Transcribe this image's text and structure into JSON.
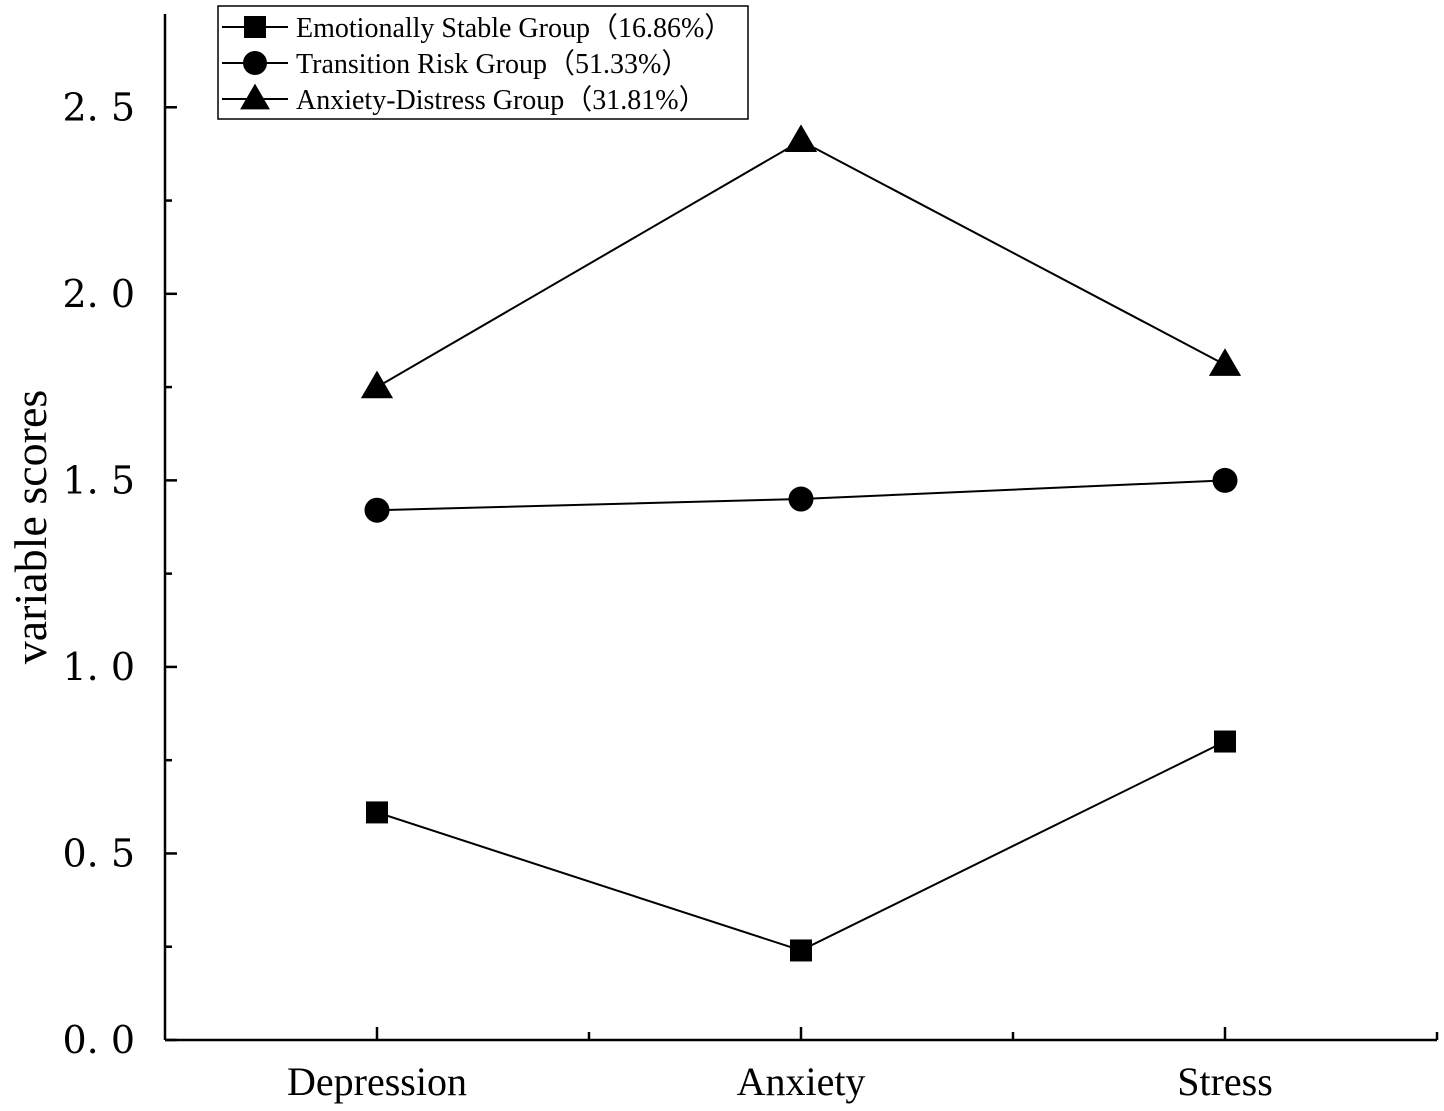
{
  "chart_data": {
    "type": "line",
    "title": "",
    "xlabel": "",
    "ylabel": "variable scores",
    "categories": [
      "Depression",
      "Anxiety",
      "Stress"
    ],
    "ylim": [
      0,
      2.75
    ],
    "yticks": [
      0.0,
      0.5,
      1.0,
      1.5,
      2.0,
      2.5
    ],
    "ytick_labels": [
      "0. 0",
      "0. 5",
      "1. 0",
      "1. 5",
      "2. 0",
      "2. 5"
    ],
    "grid": false,
    "legend_position": "top-left",
    "series": [
      {
        "name": "Emotionally Stable Group（16.86%）",
        "marker": "square",
        "color": "#000000",
        "values": [
          0.61,
          0.24,
          0.8
        ]
      },
      {
        "name": "Transition Risk Group（51.33%）",
        "marker": "circle",
        "color": "#000000",
        "values": [
          1.42,
          1.45,
          1.5
        ]
      },
      {
        "name": "Anxiety-Distress Group（31.81%）",
        "marker": "triangle",
        "color": "#000000",
        "values": [
          1.75,
          2.41,
          1.81
        ]
      }
    ]
  }
}
